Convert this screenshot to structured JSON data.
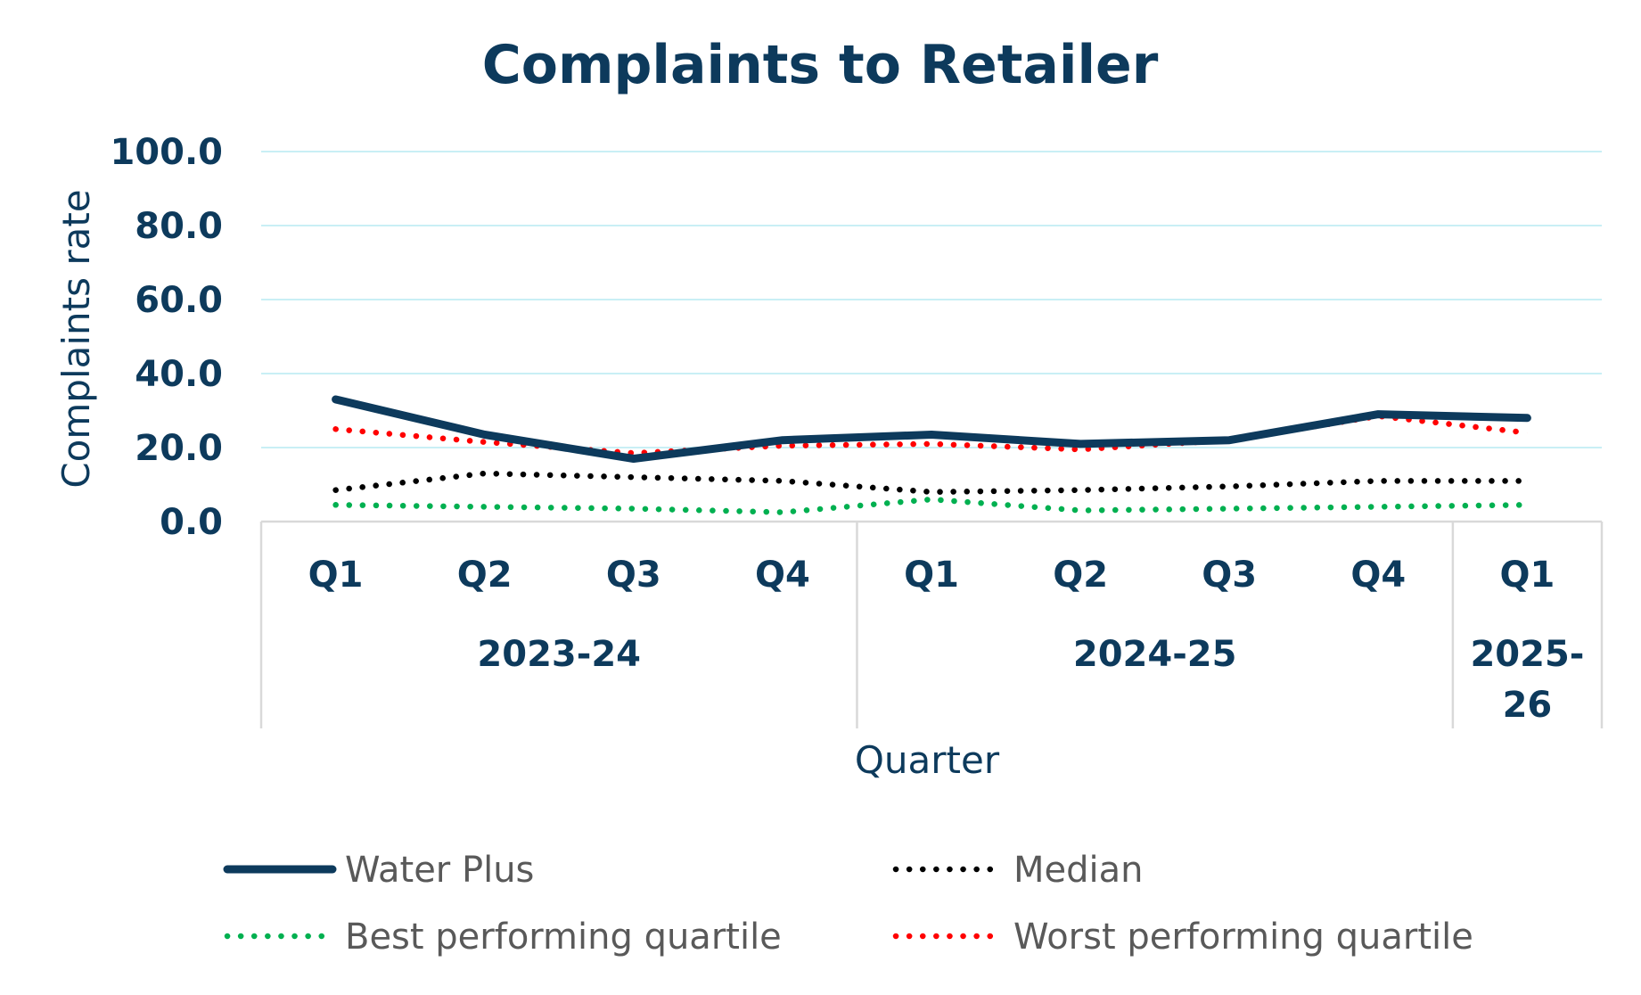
{
  "chart_data": {
    "type": "line",
    "title": "Complaints to Retailer",
    "ylabel": "Complaints rate",
    "xlabel": "Quarter",
    "ylim": [
      0,
      100
    ],
    "yticks": [
      "100.0",
      "80.0",
      "60.0",
      "40.0",
      "20.0",
      "0.0"
    ],
    "grid": true,
    "legend_position": "bottom",
    "categories": [
      "Q1",
      "Q2",
      "Q3",
      "Q4",
      "Q1",
      "Q2",
      "Q3",
      "Q4",
      "Q1"
    ],
    "groups": [
      {
        "label": "2023-24",
        "count": 4
      },
      {
        "label": "2024-25",
        "count": 4
      },
      {
        "label": "2025-26",
        "label_lines": [
          "2025-",
          "26"
        ],
        "count": 1
      }
    ],
    "series": [
      {
        "name": "Water Plus",
        "color": "#0d3a5c",
        "style": "solid",
        "values": [
          33.0,
          23.5,
          17.0,
          22.0,
          23.5,
          21.0,
          22.0,
          29.0,
          28.0
        ]
      },
      {
        "name": "Median",
        "color": "#000000",
        "style": "dotted",
        "values": [
          8.5,
          13.0,
          12.0,
          11.0,
          8.0,
          8.5,
          9.5,
          11.0,
          11.0
        ]
      },
      {
        "name": "Best performing quartile",
        "color": "#00b050",
        "style": "dotted",
        "values": [
          4.5,
          4.0,
          3.5,
          2.5,
          6.0,
          3.0,
          3.5,
          4.0,
          4.5
        ]
      },
      {
        "name": "Worst performing quartile",
        "color": "#ff0000",
        "style": "dotted",
        "values": [
          25.0,
          21.5,
          18.5,
          20.5,
          21.0,
          19.5,
          22.0,
          28.5,
          24.0
        ]
      }
    ]
  }
}
